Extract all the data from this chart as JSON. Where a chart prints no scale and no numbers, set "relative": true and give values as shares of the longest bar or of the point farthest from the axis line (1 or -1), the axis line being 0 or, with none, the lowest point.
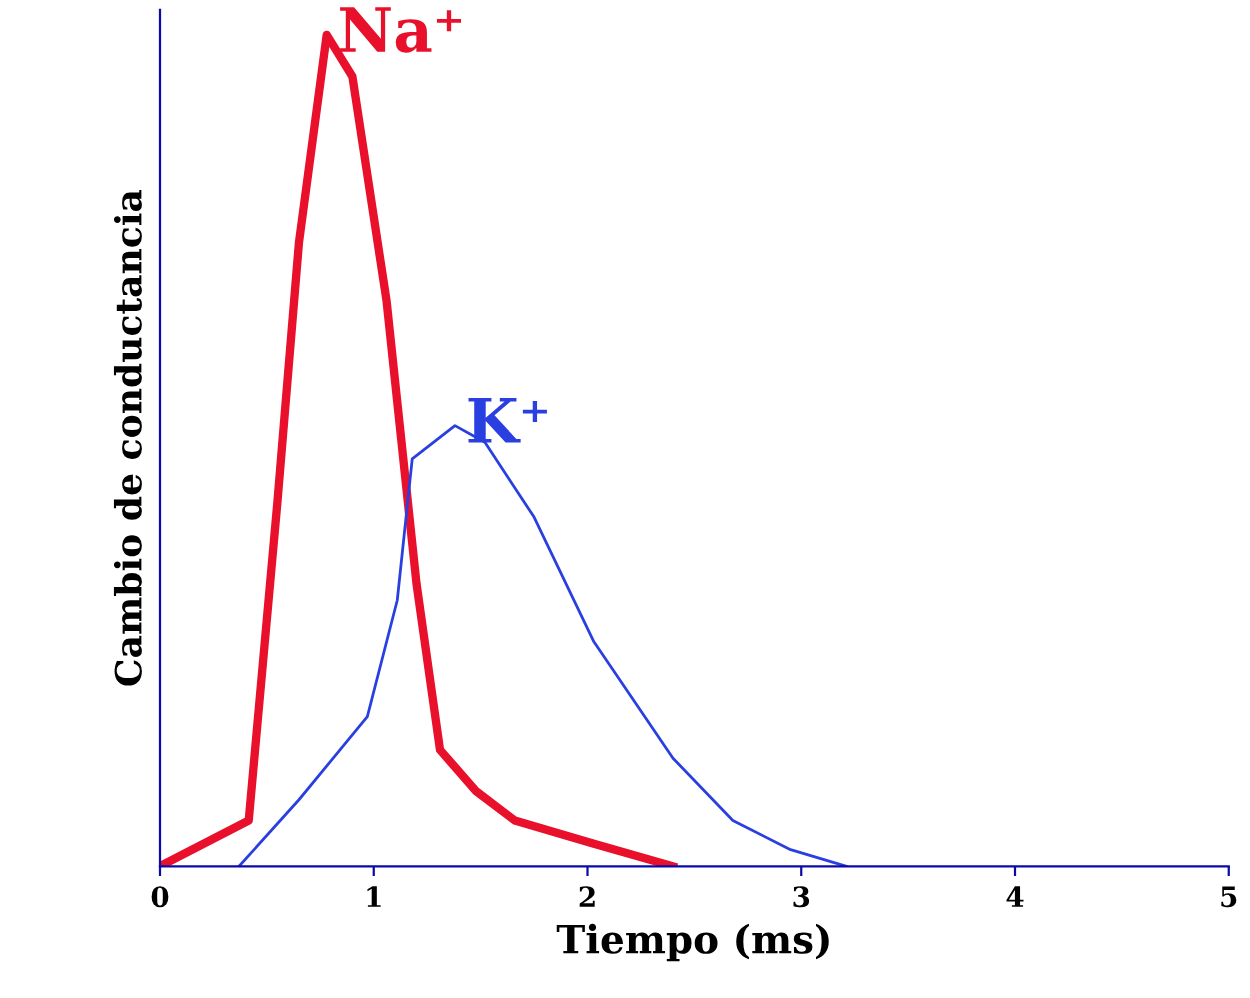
{
  "chart_data": {
    "type": "line",
    "relative": true,
    "xlabel": "Tiempo (ms)",
    "ylabel": "Cambio de conductancia",
    "xlim": [
      0,
      5
    ],
    "xticks": [
      0,
      1,
      2,
      3,
      4,
      5
    ],
    "grid": false,
    "legend": false,
    "marker": "none",
    "line_style": "solid",
    "series": [
      {
        "name": "Na⁺",
        "color": "#e8102a",
        "x": [
          0,
          0.415,
          0.55,
          0.65,
          0.78,
          0.9,
          1.06,
          1.2,
          1.31,
          1.48,
          1.66,
          2.03,
          2.4
        ],
        "values": [
          0,
          0.055,
          0.44,
          0.75,
          1.0,
          0.95,
          0.68,
          0.34,
          0.14,
          0.09,
          0.055,
          0.027,
          0
        ]
      },
      {
        "name": "K⁺",
        "color": "#2a3fe0",
        "x": [
          0.37,
          0.65,
          0.97,
          1.11,
          1.18,
          1.38,
          1.52,
          1.75,
          2.03,
          2.4,
          2.68,
          2.95,
          3.21
        ],
        "values": [
          0,
          0.08,
          0.18,
          0.32,
          0.49,
          0.53,
          0.51,
          0.42,
          0.27,
          0.13,
          0.055,
          0.02,
          0
        ]
      }
    ]
  }
}
